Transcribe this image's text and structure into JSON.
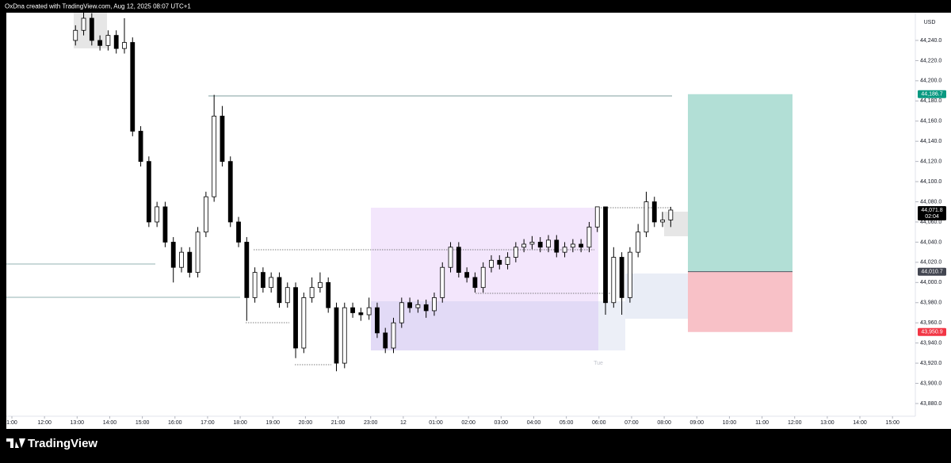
{
  "header": "OxDna created with TradingView.com, Aug 12, 2025 08:07 UTC+1",
  "footer": "TradingView",
  "chart_data": {
    "type": "candlestick",
    "currency": "USD",
    "session_label": "Tue",
    "x": [
      1.95,
      2.2,
      2.45,
      2.7,
      2.95,
      3.2,
      3.45,
      3.7,
      3.95,
      4.2,
      4.45,
      4.7,
      4.95,
      5.2,
      5.45,
      5.7,
      5.95,
      6.2,
      6.45,
      6.7,
      6.95,
      7.2,
      7.45,
      7.7,
      7.95,
      8.2,
      8.45,
      8.7,
      8.95,
      9.2,
      9.45,
      9.7,
      9.95,
      10.2,
      10.45,
      10.7,
      10.95,
      11.2,
      11.45,
      11.7,
      11.95,
      12.2,
      12.45,
      12.7,
      12.95,
      13.2,
      13.45,
      13.7,
      13.95,
      14.2,
      14.45,
      14.7,
      14.95,
      15.2,
      15.45,
      15.7,
      15.95,
      16.2,
      16.45,
      16.7,
      16.95,
      17.2,
      17.45,
      17.7,
      17.95,
      18.2,
      18.45,
      18.7,
      18.95,
      19.2,
      19.45,
      19.7,
      19.95,
      20.2
    ],
    "open": [
      44240,
      44250,
      44262,
      44240,
      44235,
      44245,
      44232,
      44238,
      44150,
      44120,
      44060,
      44075,
      44040,
      44015,
      44030,
      44010,
      44050,
      44085,
      44165,
      44120,
      44060,
      44040,
      43985,
      44010,
      43995,
      44005,
      43980,
      43995,
      43935,
      43985,
      43995,
      44000,
      43975,
      43920,
      43975,
      43970,
      43968,
      43975,
      43950,
      43935,
      43960,
      43980,
      43975,
      43978,
      43972,
      43985,
      44015,
      44035,
      44010,
      44005,
      43995,
      44015,
      44022,
      44018,
      44025,
      44035,
      44038,
      44040,
      44035,
      44042,
      44030,
      44035,
      44038,
      44035,
      44055,
      44075,
      43980,
      44025,
      43985,
      44030,
      44050,
      44080,
      44060,
      44062
    ],
    "high": [
      44255,
      44268,
      44267,
      44245,
      44250,
      44250,
      44262,
      44243,
      44155,
      44125,
      44080,
      44080,
      44045,
      44035,
      44035,
      44055,
      44090,
      44186,
      44175,
      44125,
      44065,
      44045,
      44015,
      44015,
      44010,
      44010,
      44000,
      44000,
      43990,
      44005,
      44010,
      44005,
      43980,
      43980,
      43980,
      43975,
      43985,
      43980,
      43955,
      43965,
      43985,
      43985,
      43983,
      43983,
      43990,
      44020,
      44040,
      44040,
      44015,
      44010,
      44020,
      44027,
      44027,
      44030,
      44040,
      44043,
      44046,
      44045,
      44047,
      44047,
      44040,
      44043,
      44043,
      44060,
      44075,
      44075,
      44035,
      44030,
      44035,
      44058,
      44090,
      44085,
      44070,
      44075
    ],
    "low": [
      44235,
      44245,
      44235,
      44230,
      44230,
      44227,
      44227,
      44145,
      44115,
      44055,
      44055,
      44035,
      44000,
      44010,
      44005,
      44005,
      44045,
      44080,
      44115,
      44055,
      44035,
      43962,
      43980,
      43990,
      43990,
      43975,
      43975,
      43925,
      43930,
      43980,
      43990,
      43970,
      43912,
      43915,
      43965,
      43962,
      43963,
      43945,
      43930,
      43930,
      43955,
      43970,
      43970,
      43965,
      43967,
      43980,
      44010,
      44005,
      44000,
      43990,
      43990,
      44010,
      44013,
      44013,
      44020,
      44030,
      44033,
      44030,
      44030,
      44025,
      44025,
      44030,
      44030,
      44030,
      44050,
      43968,
      43975,
      43968,
      43980,
      44025,
      44045,
      44055,
      44055,
      44055
    ],
    "close": [
      44250,
      44262,
      44240,
      44235,
      44245,
      44232,
      44238,
      44150,
      44120,
      44060,
      44075,
      44040,
      44015,
      44030,
      44010,
      44050,
      44085,
      44165,
      44120,
      44060,
      44040,
      43985,
      44010,
      43995,
      44005,
      43980,
      43995,
      43935,
      43985,
      43995,
      44000,
      43975,
      43920,
      43975,
      43970,
      43968,
      43975,
      43950,
      43935,
      43960,
      43980,
      43975,
      43978,
      43972,
      43985,
      44015,
      44035,
      44010,
      44005,
      43995,
      44015,
      44022,
      44018,
      44025,
      44035,
      44038,
      44040,
      44035,
      44042,
      44030,
      44035,
      44038,
      44035,
      44055,
      44075,
      43980,
      44025,
      43985,
      44030,
      44050,
      44080,
      44060,
      44062,
      44071.8
    ],
    "up_color": "#ffffff",
    "down_color": "#000000",
    "xlim": [
      -0.17,
      27.7
    ],
    "xticks": [
      {
        "value": 0,
        "label": "1:00"
      },
      {
        "value": 1,
        "label": "12:00"
      },
      {
        "value": 2,
        "label": "13:00"
      },
      {
        "value": 3,
        "label": "14:00"
      },
      {
        "value": 4,
        "label": "15:00"
      },
      {
        "value": 5,
        "label": "16:00"
      },
      {
        "value": 6,
        "label": "17:00"
      },
      {
        "value": 7,
        "label": "18:00"
      },
      {
        "value": 8,
        "label": "19:00"
      },
      {
        "value": 9,
        "label": "20:00"
      },
      {
        "value": 10,
        "label": "21:00"
      },
      {
        "value": 11,
        "label": "23:00"
      },
      {
        "value": 12,
        "label": "12"
      },
      {
        "value": 13,
        "label": "01:00"
      },
      {
        "value": 14,
        "label": "02:00"
      },
      {
        "value": 15,
        "label": "03:00"
      },
      {
        "value": 16,
        "label": "04:00"
      },
      {
        "value": 17,
        "label": "05:00"
      },
      {
        "value": 18,
        "label": "06:00"
      },
      {
        "value": 19,
        "label": "07:00"
      },
      {
        "value": 20,
        "label": "08:00"
      },
      {
        "value": 21,
        "label": "09:00"
      },
      {
        "value": 22,
        "label": "10:00"
      },
      {
        "value": 23,
        "label": "11:00"
      },
      {
        "value": 24,
        "label": "12:00"
      },
      {
        "value": 25,
        "label": "13:00"
      },
      {
        "value": 26,
        "label": "14:00"
      },
      {
        "value": 27,
        "label": "15:00"
      }
    ],
    "ylim": [
      43867.4,
      44267.5
    ],
    "yticks": [
      {
        "value": 43880,
        "label": "43,880.0"
      },
      {
        "value": 43900,
        "label": "43,900.0"
      },
      {
        "value": 43920,
        "label": "43,920.0"
      },
      {
        "value": 43940,
        "label": "43,940.0"
      },
      {
        "value": 43960,
        "label": "43,960.0"
      },
      {
        "value": 43980,
        "label": "43,980.0"
      },
      {
        "value": 44000,
        "label": "44,000.0"
      },
      {
        "value": 44020,
        "label": "44,020.0"
      },
      {
        "value": 44040,
        "label": "44,040.0"
      },
      {
        "value": 44060,
        "label": "44,060.0"
      },
      {
        "value": 44080,
        "label": "44,080.0"
      },
      {
        "value": 44100,
        "label": "44,100.0"
      },
      {
        "value": 44120,
        "label": "44,120.0"
      },
      {
        "value": 44140,
        "label": "44,140.0"
      },
      {
        "value": 44160,
        "label": "44,160.0"
      },
      {
        "value": 44180,
        "label": "44,180.0"
      },
      {
        "value": 44200,
        "label": "44,200.0"
      },
      {
        "value": 44220,
        "label": "44,220.0"
      },
      {
        "value": 44240,
        "label": "44,240.0"
      }
    ],
    "price_labels": [
      {
        "value": 44186.7,
        "label": "44,186.7",
        "color": "#089981"
      },
      {
        "value": 44071.8,
        "label": "44,071.8",
        "color": "#000000",
        "countdown": "02:04"
      },
      {
        "value": 44010.7,
        "label": "44,010.7",
        "color": "#434651"
      },
      {
        "value": 43950.9,
        "label": "43,950.9",
        "color": "#f23645"
      }
    ],
    "target_color": "#b2dfd6",
    "stop_color": "#f8c1c7"
  }
}
